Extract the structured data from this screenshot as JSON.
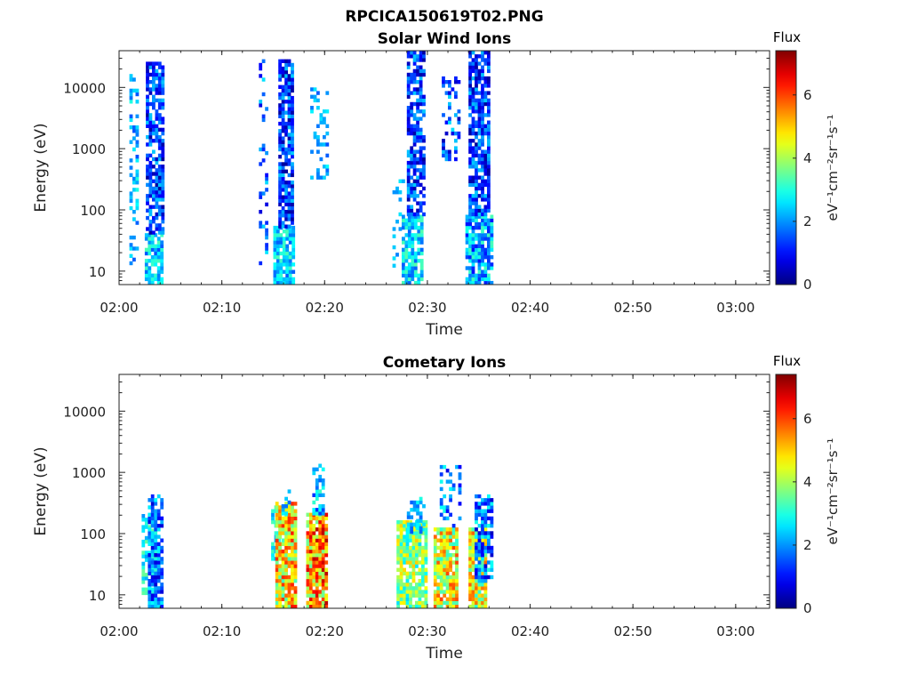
{
  "figure_title": "RPCICA150619T02.PNG",
  "chart_data": [
    {
      "type": "heatmap",
      "title": "Solar Wind Ions",
      "xlabel": "Time",
      "ylabel": "Energy (eV)",
      "xticks": [
        "02:00",
        "02:10",
        "02:20",
        "02:30",
        "02:40",
        "02:50",
        "03:00"
      ],
      "xlim_minutes": [
        0,
        63.3
      ],
      "yticks": [
        "10",
        "100",
        "1000",
        "10000"
      ],
      "ylim_log10": [
        0.78,
        4.6
      ],
      "yscale": "log",
      "colorbar": {
        "title": "Flux",
        "label": "eV⁻¹cm⁻²sr⁻¹s⁻¹",
        "ticks": [
          "0",
          "2",
          "4",
          "6"
        ],
        "range": [
          0,
          7.4
        ]
      },
      "seed": 11,
      "bursts": [
        {
          "t0": 1.0,
          "t1": 1.9,
          "e0": 1.1,
          "e1": 4.2,
          "fmin": 1.5,
          "fmax": 3.0,
          "density": 0.35
        },
        {
          "t0": 2.5,
          "t1": 4.2,
          "e0": 0.78,
          "e1": 1.6,
          "fmin": 1.5,
          "fmax": 3.3,
          "density": 0.8
        },
        {
          "t0": 2.6,
          "t1": 4.2,
          "e0": 1.6,
          "e1": 4.4,
          "fmin": 0.2,
          "fmax": 2.4,
          "density": 0.75
        },
        {
          "t0": 13.6,
          "t1": 14.5,
          "e0": 1.1,
          "e1": 4.5,
          "fmin": 0.6,
          "fmax": 2.6,
          "density": 0.2
        },
        {
          "t0": 15.0,
          "t1": 17.0,
          "e0": 0.78,
          "e1": 1.7,
          "fmin": 1.6,
          "fmax": 3.3,
          "density": 0.85
        },
        {
          "t0": 15.5,
          "t1": 16.8,
          "e0": 1.7,
          "e1": 4.4,
          "fmin": 0.2,
          "fmax": 2.4,
          "density": 0.8
        },
        {
          "t0": 18.6,
          "t1": 20.2,
          "e0": 2.5,
          "e1": 4.0,
          "fmin": 1.5,
          "fmax": 2.8,
          "density": 0.3
        },
        {
          "t0": 26.6,
          "t1": 27.6,
          "e0": 1.0,
          "e1": 2.6,
          "fmin": 1.5,
          "fmax": 2.8,
          "density": 0.2
        },
        {
          "t0": 27.5,
          "t1": 29.6,
          "e0": 0.78,
          "e1": 1.9,
          "fmin": 1.6,
          "fmax": 3.4,
          "density": 0.8
        },
        {
          "t0": 28.0,
          "t1": 29.6,
          "e0": 1.9,
          "e1": 4.6,
          "fmin": 0.2,
          "fmax": 2.4,
          "density": 0.72
        },
        {
          "t0": 31.4,
          "t1": 33.0,
          "e0": 2.8,
          "e1": 4.2,
          "fmin": 0.4,
          "fmax": 2.6,
          "density": 0.3
        },
        {
          "t0": 33.7,
          "t1": 36.2,
          "e0": 0.78,
          "e1": 1.9,
          "fmin": 1.0,
          "fmax": 3.3,
          "density": 0.85
        },
        {
          "t0": 34.0,
          "t1": 36.0,
          "e0": 1.9,
          "e1": 4.6,
          "fmin": 0.2,
          "fmax": 2.4,
          "density": 0.78
        }
      ]
    },
    {
      "type": "heatmap",
      "title": "Cometary Ions",
      "xlabel": "Time",
      "ylabel": "Energy (eV)",
      "xticks": [
        "02:00",
        "02:10",
        "02:20",
        "02:30",
        "02:40",
        "02:50",
        "03:00"
      ],
      "xlim_minutes": [
        0,
        63.3
      ],
      "yticks": [
        "10",
        "100",
        "1000",
        "10000"
      ],
      "ylim_log10": [
        0.78,
        4.6
      ],
      "yscale": "log",
      "colorbar": {
        "title": "Flux",
        "label": "eV⁻¹cm⁻²sr⁻¹s⁻¹",
        "ticks": [
          "0",
          "2",
          "4",
          "6"
        ],
        "range": [
          0,
          7.4
        ]
      },
      "seed": 29,
      "bursts": [
        {
          "t0": 2.2,
          "t1": 3.4,
          "e0": 1.0,
          "e1": 2.3,
          "fmin": 2.0,
          "fmax": 3.6,
          "density": 0.7
        },
        {
          "t0": 2.8,
          "t1": 4.2,
          "e0": 0.78,
          "e1": 2.6,
          "fmin": 0.6,
          "fmax": 2.8,
          "density": 0.75
        },
        {
          "t0": 14.8,
          "t1": 15.6,
          "e0": 1.5,
          "e1": 2.6,
          "fmin": 2.0,
          "fmax": 3.4,
          "density": 0.5
        },
        {
          "t0": 15.2,
          "t1": 17.2,
          "e0": 0.78,
          "e1": 2.5,
          "fmin": 3.2,
          "fmax": 6.4,
          "density": 0.9
        },
        {
          "t0": 15.8,
          "t1": 16.6,
          "e0": 2.3,
          "e1": 2.7,
          "fmin": 1.5,
          "fmax": 3.0,
          "density": 0.6
        },
        {
          "t0": 18.2,
          "t1": 20.2,
          "e0": 0.78,
          "e1": 2.3,
          "fmin": 3.5,
          "fmax": 7.0,
          "density": 0.9
        },
        {
          "t0": 18.8,
          "t1": 20.0,
          "e0": 2.3,
          "e1": 3.1,
          "fmin": 1.2,
          "fmax": 3.2,
          "density": 0.45
        },
        {
          "t0": 27.0,
          "t1": 29.8,
          "e0": 0.78,
          "e1": 2.2,
          "fmin": 2.5,
          "fmax": 5.0,
          "density": 0.85
        },
        {
          "t0": 28.0,
          "t1": 29.6,
          "e0": 2.0,
          "e1": 2.6,
          "fmin": 1.5,
          "fmax": 3.0,
          "density": 0.5
        },
        {
          "t0": 30.6,
          "t1": 32.8,
          "e0": 0.78,
          "e1": 2.1,
          "fmin": 3.0,
          "fmax": 6.0,
          "density": 0.9
        },
        {
          "t0": 31.2,
          "t1": 33.2,
          "e0": 2.1,
          "e1": 3.1,
          "fmin": 0.6,
          "fmax": 3.0,
          "density": 0.35
        },
        {
          "t0": 34.0,
          "t1": 35.6,
          "e0": 0.78,
          "e1": 2.1,
          "fmin": 3.0,
          "fmax": 5.8,
          "density": 0.9
        },
        {
          "t0": 34.6,
          "t1": 36.2,
          "e0": 1.2,
          "e1": 2.6,
          "fmin": 0.4,
          "fmax": 3.0,
          "density": 0.7
        }
      ]
    }
  ]
}
